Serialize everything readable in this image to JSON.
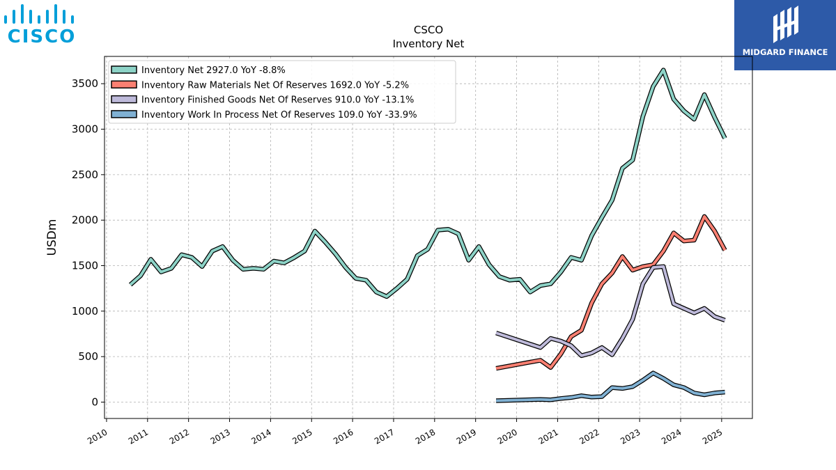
{
  "logos": {
    "company": {
      "text": "CISCO",
      "color": "#049fd9"
    },
    "brand": {
      "text": "MIDGARD FINANCE",
      "bg": "#2d5aa8",
      "fg": "#ffffff"
    }
  },
  "chart_data": {
    "type": "line",
    "title": "CSCO",
    "subtitle": "Inventory Net",
    "xlabel": "",
    "ylabel": "USDm",
    "xlim": [
      2009.95,
      2025.75
    ],
    "ylim": [
      -180,
      3800
    ],
    "grid": true,
    "legend_position": "top-left",
    "x_ticks": [
      "2010",
      "2011",
      "2012",
      "2013",
      "2014",
      "2015",
      "2016",
      "2017",
      "2018",
      "2019",
      "2020",
      "2021",
      "2022",
      "2023",
      "2024",
      "2025"
    ],
    "y_ticks": [
      "0",
      "500",
      "1000",
      "1500",
      "2000",
      "2500",
      "3000",
      "3500"
    ],
    "series": [
      {
        "name": "Inventory Net  2927.0 YoY -8.8%",
        "color": "#8dd3c7",
        "points": [
          [
            2010.58,
            1290
          ],
          [
            2010.83,
            1390
          ],
          [
            2011.08,
            1570
          ],
          [
            2011.33,
            1430
          ],
          [
            2011.58,
            1470
          ],
          [
            2011.83,
            1620
          ],
          [
            2012.08,
            1590
          ],
          [
            2012.33,
            1490
          ],
          [
            2012.58,
            1660
          ],
          [
            2012.83,
            1710
          ],
          [
            2013.08,
            1560
          ],
          [
            2013.33,
            1460
          ],
          [
            2013.58,
            1470
          ],
          [
            2013.83,
            1460
          ],
          [
            2014.08,
            1550
          ],
          [
            2014.33,
            1530
          ],
          [
            2014.58,
            1590
          ],
          [
            2014.83,
            1660
          ],
          [
            2015.08,
            1880
          ],
          [
            2015.33,
            1760
          ],
          [
            2015.58,
            1630
          ],
          [
            2015.83,
            1480
          ],
          [
            2016.08,
            1360
          ],
          [
            2016.33,
            1340
          ],
          [
            2016.58,
            1210
          ],
          [
            2016.83,
            1160
          ],
          [
            2017.08,
            1250
          ],
          [
            2017.33,
            1350
          ],
          [
            2017.58,
            1610
          ],
          [
            2017.83,
            1680
          ],
          [
            2018.08,
            1890
          ],
          [
            2018.33,
            1900
          ],
          [
            2018.58,
            1850
          ],
          [
            2018.83,
            1560
          ],
          [
            2019.08,
            1710
          ],
          [
            2019.33,
            1510
          ],
          [
            2019.58,
            1380
          ],
          [
            2019.83,
            1340
          ],
          [
            2020.08,
            1350
          ],
          [
            2020.33,
            1210
          ],
          [
            2020.58,
            1280
          ],
          [
            2020.83,
            1300
          ],
          [
            2021.08,
            1430
          ],
          [
            2021.33,
            1590
          ],
          [
            2021.58,
            1560
          ],
          [
            2021.83,
            1830
          ],
          [
            2022.08,
            2030
          ],
          [
            2022.33,
            2220
          ],
          [
            2022.58,
            2570
          ],
          [
            2022.83,
            2660
          ],
          [
            2023.08,
            3140
          ],
          [
            2023.33,
            3470
          ],
          [
            2023.58,
            3650
          ],
          [
            2023.83,
            3330
          ],
          [
            2024.08,
            3200
          ],
          [
            2024.33,
            3110
          ],
          [
            2024.58,
            3380
          ],
          [
            2024.83,
            3130
          ],
          [
            2025.08,
            2900
          ]
        ]
      },
      {
        "name": "Inventory Raw Materials Net Of Reserves  1692.0 YoY -5.2%",
        "color": "#fb8072",
        "points": [
          [
            2019.5,
            370
          ],
          [
            2020.58,
            460
          ],
          [
            2020.83,
            380
          ],
          [
            2021.08,
            530
          ],
          [
            2021.33,
            720
          ],
          [
            2021.58,
            790
          ],
          [
            2021.83,
            1090
          ],
          [
            2022.08,
            1300
          ],
          [
            2022.33,
            1420
          ],
          [
            2022.58,
            1600
          ],
          [
            2022.83,
            1450
          ],
          [
            2023.08,
            1490
          ],
          [
            2023.33,
            1510
          ],
          [
            2023.58,
            1660
          ],
          [
            2023.83,
            1860
          ],
          [
            2024.08,
            1770
          ],
          [
            2024.33,
            1780
          ],
          [
            2024.58,
            2040
          ],
          [
            2024.83,
            1880
          ],
          [
            2025.08,
            1670
          ]
        ]
      },
      {
        "name": "Inventory Finished Goods Net Of Reserves  910.0 YoY -13.1%",
        "color": "#bebada",
        "points": [
          [
            2019.5,
            760
          ],
          [
            2020.58,
            600
          ],
          [
            2020.83,
            700
          ],
          [
            2021.08,
            670
          ],
          [
            2021.33,
            620
          ],
          [
            2021.58,
            510
          ],
          [
            2021.83,
            540
          ],
          [
            2022.08,
            600
          ],
          [
            2022.33,
            520
          ],
          [
            2022.58,
            700
          ],
          [
            2022.83,
            910
          ],
          [
            2023.08,
            1300
          ],
          [
            2023.33,
            1480
          ],
          [
            2023.58,
            1490
          ],
          [
            2023.83,
            1080
          ],
          [
            2024.08,
            1030
          ],
          [
            2024.33,
            980
          ],
          [
            2024.58,
            1030
          ],
          [
            2024.83,
            940
          ],
          [
            2025.08,
            900
          ]
        ]
      },
      {
        "name": "Inventory Work In Process Net Of Reserves  109.0 YoY -33.9%",
        "color": "#80b1d3",
        "points": [
          [
            2019.5,
            15
          ],
          [
            2020.58,
            30
          ],
          [
            2020.83,
            25
          ],
          [
            2021.08,
            40
          ],
          [
            2021.33,
            50
          ],
          [
            2021.58,
            70
          ],
          [
            2021.83,
            55
          ],
          [
            2022.08,
            60
          ],
          [
            2022.33,
            160
          ],
          [
            2022.58,
            150
          ],
          [
            2022.83,
            170
          ],
          [
            2023.08,
            240
          ],
          [
            2023.33,
            320
          ],
          [
            2023.58,
            260
          ],
          [
            2023.83,
            190
          ],
          [
            2024.08,
            160
          ],
          [
            2024.33,
            100
          ],
          [
            2024.58,
            80
          ],
          [
            2024.83,
            100
          ],
          [
            2025.08,
            110
          ]
        ]
      }
    ]
  }
}
